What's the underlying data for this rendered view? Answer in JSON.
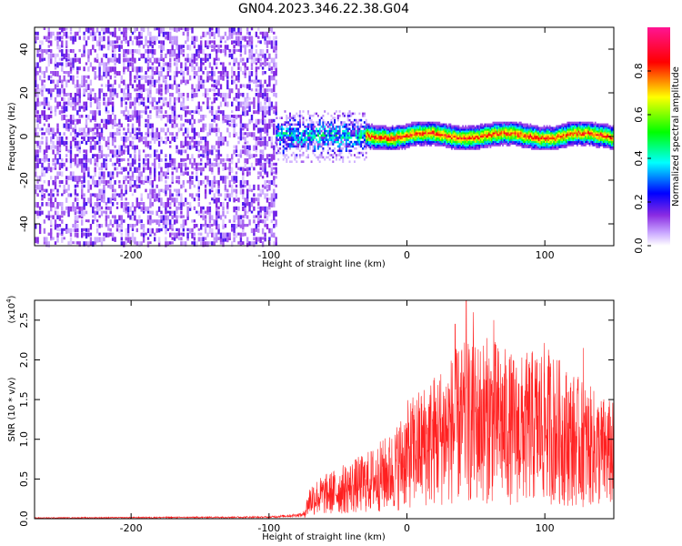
{
  "chart_data": [
    {
      "type": "heatmap",
      "title": "GN04.2023.346.22.38.G04",
      "xlabel": "Height of straight line (km)",
      "ylabel": "Frequency (Hz)",
      "xlim": [
        -270,
        150
      ],
      "ylim": [
        -50,
        50
      ],
      "xticks": [
        -200,
        -100,
        0,
        100
      ],
      "yticks": [
        -40,
        -20,
        0,
        20,
        40
      ],
      "colorbar": {
        "label": "Normalized spectral amplitude",
        "range": [
          0.0,
          1.0
        ],
        "ticks": [
          "0.0",
          "0.2",
          "0.4",
          "0.6",
          "0.8"
        ],
        "colormap": [
          "#ffffff",
          "#8a2be2",
          "#0000ff",
          "#00ffff",
          "#00ff00",
          "#ffff00",
          "#ff0000",
          "#ff1493"
        ]
      },
      "description_regions": [
        {
          "x_range": [
            -270,
            -95
          ],
          "frequency_range": [
            -50,
            50
          ],
          "amplitude": 0.1
        },
        {
          "x_range": [
            -95,
            -30
          ],
          "frequency_range": [
            -8,
            8
          ],
          "amplitude": 0.35
        },
        {
          "x_range": [
            -30,
            150
          ],
          "frequency_range": [
            -3,
            3
          ],
          "amplitude": 0.85
        }
      ]
    },
    {
      "type": "line",
      "xlabel": "Height of straight line (km)",
      "ylabel": "SNR (10 * v/v)",
      "yscale_label": "(x10",
      "yscale_exp": "4",
      "yscale_close": ")",
      "xlim": [
        -270,
        150
      ],
      "ylim": [
        0,
        2.75
      ],
      "xticks": [
        -200,
        -100,
        0,
        100
      ],
      "yticks": [
        0.0,
        0.5,
        1.0,
        1.5,
        2.0,
        2.5
      ],
      "color": "#ff2020",
      "envelope": [
        {
          "x": -270,
          "y": 0.01
        },
        {
          "x": -100,
          "y": 0.02
        },
        {
          "x": -75,
          "y": 0.05
        },
        {
          "x": -70,
          "y": 0.25
        },
        {
          "x": -50,
          "y": 0.35
        },
        {
          "x": -30,
          "y": 0.45
        },
        {
          "x": -10,
          "y": 0.6
        },
        {
          "x": 0,
          "y": 0.8
        },
        {
          "x": 20,
          "y": 1.0
        },
        {
          "x": 40,
          "y": 1.2
        },
        {
          "x": 60,
          "y": 1.25
        },
        {
          "x": 80,
          "y": 1.1
        },
        {
          "x": 100,
          "y": 1.2
        },
        {
          "x": 120,
          "y": 1.0
        },
        {
          "x": 140,
          "y": 0.85
        },
        {
          "x": 150,
          "y": 0.8
        }
      ],
      "peaks": [
        {
          "x": 35,
          "y": 2.45
        },
        {
          "x": 43,
          "y": 2.75
        },
        {
          "x": 48,
          "y": 2.6
        },
        {
          "x": 63,
          "y": 2.5
        },
        {
          "x": 128,
          "y": 2.15
        }
      ]
    }
  ]
}
